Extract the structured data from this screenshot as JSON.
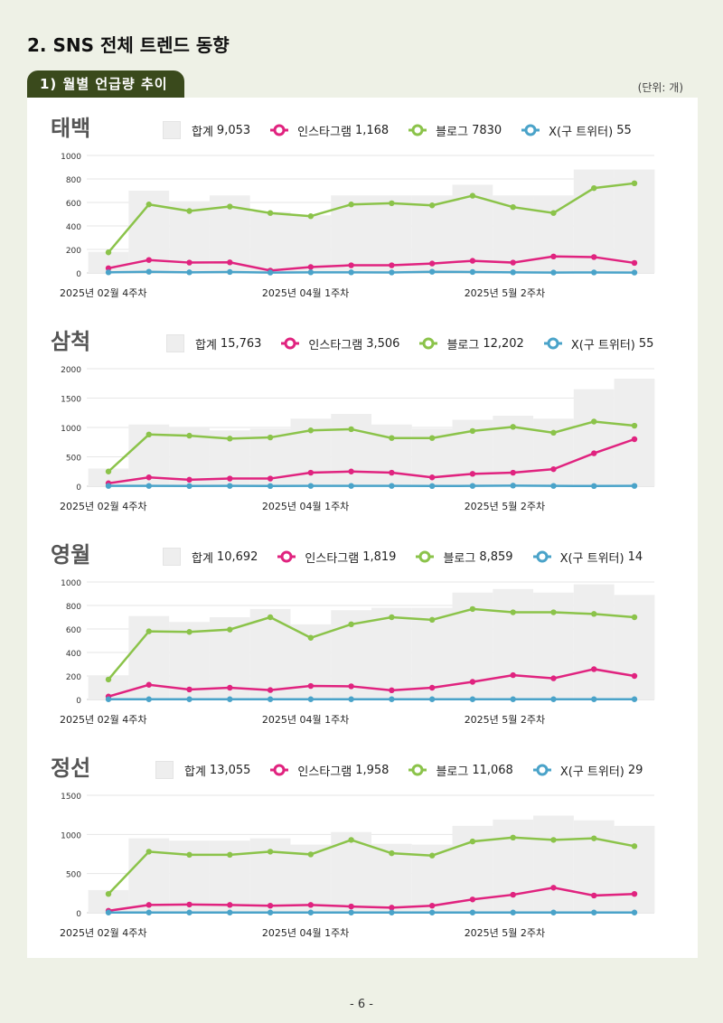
{
  "page": {
    "section_title": "2.  SNS 전체 트렌드 동향",
    "sub_header": "1) 월별 언급량 추이",
    "unit": "(단위: 개)",
    "page_number": "- 6 -"
  },
  "colors": {
    "total": "#eeeeee",
    "instagram": "#e0237f",
    "blog": "#8bc34a",
    "twitter": "#4aa3c9"
  },
  "chart_data": [
    {
      "type": "line",
      "title": "태백",
      "legend": [
        {
          "label": "합계",
          "value": "9,053"
        },
        {
          "label": "인스타그램",
          "value": "1,168"
        },
        {
          "label": "블로그",
          "value": "7830"
        },
        {
          "label": "X(구 트위터)",
          "value": "55"
        }
      ],
      "x_tick_labels": [
        {
          "index": 0,
          "label": "2025년 02월 4주차"
        },
        {
          "index": 5,
          "label": "2025년 04월 1주차"
        },
        {
          "index": 10,
          "label": "2025년 5월 2주차"
        }
      ],
      "ylim": [
        0,
        1000
      ],
      "yticks": [
        0,
        200,
        400,
        600,
        800,
        1000
      ],
      "series": [
        {
          "name": "합계",
          "type": "bar",
          "values": [
            180,
            700,
            610,
            660,
            520,
            490,
            660,
            660,
            660,
            750,
            660,
            660,
            880,
            880
          ]
        },
        {
          "name": "블로그",
          "values": [
            175,
            583,
            527,
            565,
            510,
            483,
            583,
            593,
            575,
            657,
            560,
            510,
            722,
            763
          ]
        },
        {
          "name": "인스타그램",
          "values": [
            40,
            110,
            88,
            90,
            20,
            50,
            65,
            65,
            80,
            103,
            88,
            140,
            135,
            85
          ]
        },
        {
          "name": "X(구 트위터)",
          "values": [
            5,
            10,
            5,
            8,
            3,
            5,
            5,
            4,
            10,
            8,
            5,
            3,
            4,
            3
          ]
        }
      ]
    },
    {
      "type": "line",
      "title": "삼척",
      "legend": [
        {
          "label": "합계",
          "value": "15,763"
        },
        {
          "label": "인스타그램",
          "value": "3,506"
        },
        {
          "label": "블로그",
          "value": "12,202"
        },
        {
          "label": "X(구 트위터)",
          "value": "55"
        }
      ],
      "x_tick_labels": [
        {
          "index": 0,
          "label": "2025년 02월 4주차"
        },
        {
          "index": 5,
          "label": "2025년 04월 1주차"
        },
        {
          "index": 10,
          "label": "2025년 5월 2주차"
        }
      ],
      "ylim": [
        0,
        2000
      ],
      "yticks": [
        0,
        500,
        1000,
        1500,
        2000
      ],
      "series": [
        {
          "name": "합계",
          "type": "bar",
          "values": [
            300,
            1050,
            1000,
            950,
            980,
            1150,
            1230,
            1050,
            980,
            1130,
            1200,
            1150,
            1650,
            1830
          ]
        },
        {
          "name": "블로그",
          "values": [
            250,
            880,
            860,
            810,
            830,
            950,
            970,
            820,
            820,
            940,
            1010,
            910,
            1100,
            1030
          ]
        },
        {
          "name": "인스타그램",
          "values": [
            50,
            150,
            110,
            130,
            130,
            230,
            250,
            230,
            150,
            210,
            230,
            290,
            560,
            800
          ]
        },
        {
          "name": "X(구 트위터)",
          "values": [
            5,
            5,
            3,
            5,
            3,
            5,
            5,
            5,
            3,
            5,
            10,
            5,
            3,
            5
          ]
        }
      ]
    },
    {
      "type": "line",
      "title": "영월",
      "legend": [
        {
          "label": "합계",
          "value": "10,692"
        },
        {
          "label": "인스타그램",
          "value": "1,819"
        },
        {
          "label": "블로그",
          "value": "8,859"
        },
        {
          "label": "X(구 트위터)",
          "value": "14"
        }
      ],
      "x_tick_labels": [
        {
          "index": 0,
          "label": "2025년 02월 4주차"
        },
        {
          "index": 5,
          "label": "2025년 04월 1주차"
        },
        {
          "index": 10,
          "label": "2025년 5월 2주차"
        }
      ],
      "ylim": [
        0,
        1000
      ],
      "yticks": [
        0,
        200,
        400,
        600,
        800,
        1000
      ],
      "series": [
        {
          "name": "합계",
          "type": "bar",
          "values": [
            200,
            710,
            660,
            700,
            770,
            640,
            760,
            780,
            780,
            910,
            940,
            910,
            980,
            890
          ]
        },
        {
          "name": "블로그",
          "values": [
            170,
            580,
            575,
            595,
            700,
            525,
            640,
            700,
            678,
            770,
            742,
            742,
            728,
            700
          ]
        },
        {
          "name": "인스타그램",
          "values": [
            25,
            125,
            85,
            100,
            80,
            115,
            112,
            78,
            100,
            150,
            207,
            180,
            258,
            200
          ]
        },
        {
          "name": "X(구 트위터)",
          "values": [
            2,
            2,
            2,
            2,
            2,
            2,
            2,
            2,
            2,
            2,
            2,
            2,
            2,
            2
          ]
        }
      ]
    },
    {
      "type": "line",
      "title": "정선",
      "legend": [
        {
          "label": "합계",
          "value": "13,055"
        },
        {
          "label": "인스타그램",
          "value": "1,958"
        },
        {
          "label": "블로그",
          "value": "11,068"
        },
        {
          "label": "X(구 트위터)",
          "value": "29"
        }
      ],
      "x_tick_labels": [
        {
          "index": 0,
          "label": "2025년 02월 4주차"
        },
        {
          "index": 5,
          "label": "2025년 04월 1주차"
        },
        {
          "index": 10,
          "label": "2025년 5월 2주차"
        }
      ],
      "ylim": [
        0,
        1500
      ],
      "yticks": [
        0,
        500,
        1000,
        1500
      ],
      "series": [
        {
          "name": "합계",
          "type": "bar",
          "values": [
            290,
            950,
            920,
            920,
            950,
            870,
            1030,
            880,
            870,
            1110,
            1190,
            1240,
            1180,
            1110
          ]
        },
        {
          "name": "블로그",
          "values": [
            240,
            780,
            740,
            740,
            780,
            745,
            930,
            760,
            730,
            910,
            960,
            930,
            950,
            850
          ]
        },
        {
          "name": "인스타그램",
          "values": [
            25,
            100,
            105,
            100,
            90,
            100,
            80,
            65,
            90,
            170,
            230,
            320,
            220,
            240
          ]
        },
        {
          "name": "X(구 트위터)",
          "values": [
            3,
            3,
            3,
            3,
            3,
            3,
            3,
            3,
            3,
            3,
            3,
            3,
            3,
            3
          ]
        }
      ]
    }
  ]
}
